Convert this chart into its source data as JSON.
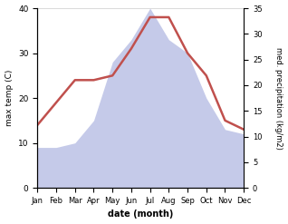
{
  "months": [
    "Jan",
    "Feb",
    "Mar",
    "Apr",
    "May",
    "Jun",
    "Jul",
    "Aug",
    "Sep",
    "Oct",
    "Nov",
    "Dec"
  ],
  "max_temp": [
    14,
    19,
    24,
    24,
    25,
    31,
    38,
    38,
    30,
    25,
    15,
    13
  ],
  "precipitation": [
    9,
    9,
    10,
    15,
    28,
    33,
    40,
    33,
    30,
    20,
    13,
    12
  ],
  "temp_color": "#c0504d",
  "precip_fill_color": "#c5cae9",
  "background_color": "#ffffff",
  "ylabel_left": "max temp (C)",
  "ylabel_right": "med. precipitation (kg/m2)",
  "xlabel": "date (month)",
  "ylim_left": [
    0,
    40
  ],
  "ylim_right": [
    0,
    35
  ],
  "yticks_left": [
    0,
    10,
    20,
    30,
    40
  ],
  "yticks_right": [
    0,
    5,
    10,
    15,
    20,
    25,
    30,
    35
  ],
  "temp_linewidth": 1.8
}
